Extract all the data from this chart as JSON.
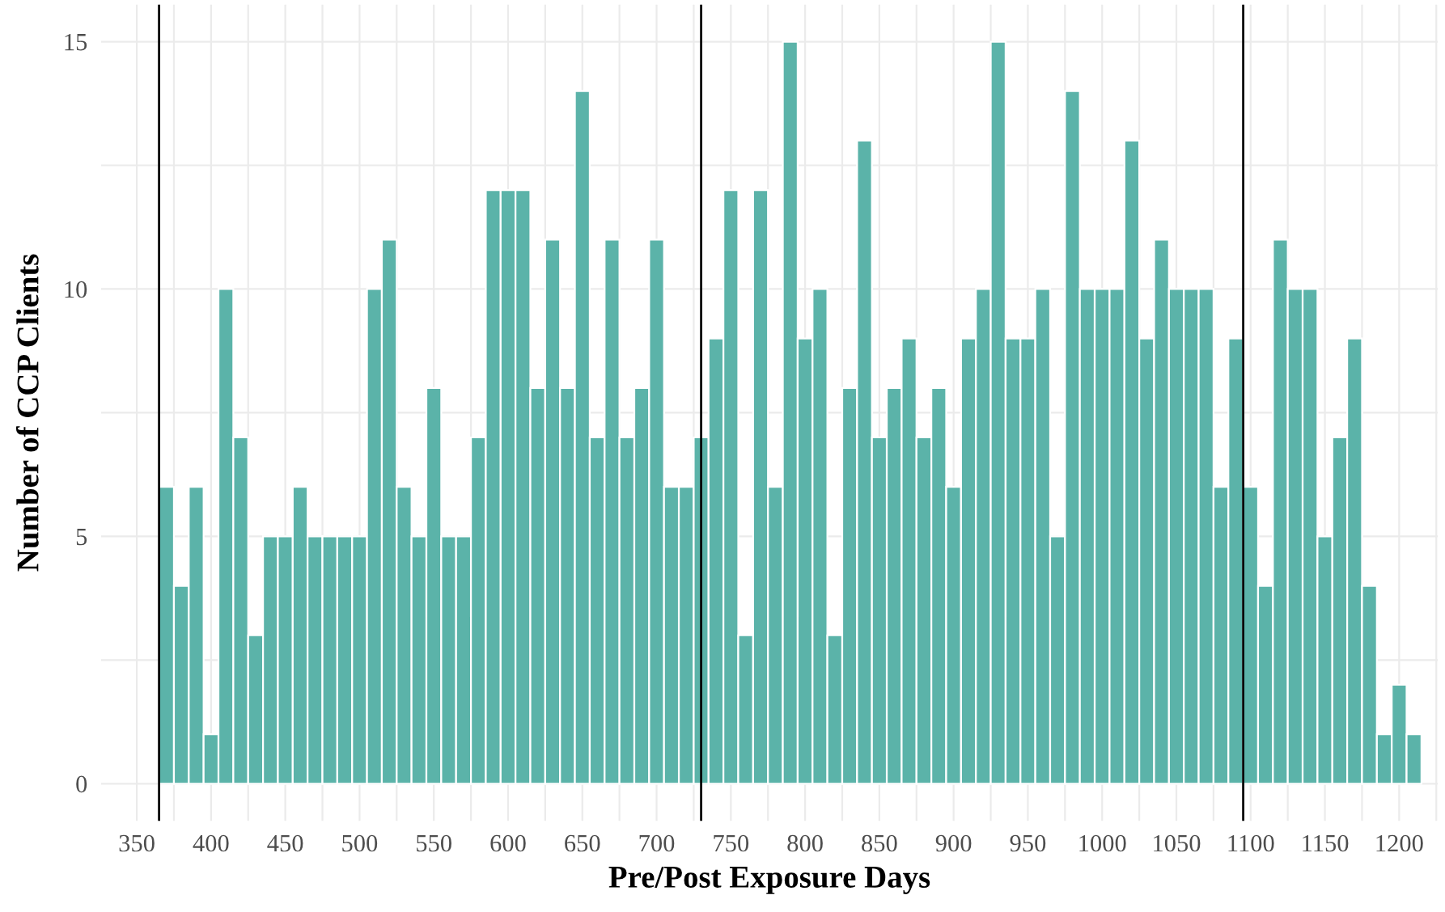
{
  "chart_data": {
    "type": "histogram",
    "xlabel": "Pre/Post Exposure Days",
    "ylabel": "Number of CCP Clients",
    "bins": [
      365,
      375,
      385,
      395,
      405,
      415,
      425,
      435,
      445,
      455,
      465,
      475,
      485,
      495,
      505,
      515,
      525,
      535,
      545,
      555,
      565,
      575,
      585,
      595,
      605,
      615,
      625,
      635,
      645,
      655,
      665,
      675,
      685,
      695,
      705,
      715,
      725,
      735,
      745,
      755,
      765,
      775,
      785,
      795,
      805,
      815,
      825,
      835,
      845,
      855,
      865,
      875,
      885,
      895,
      905,
      915,
      925,
      935,
      945,
      955,
      965,
      975,
      985,
      995,
      1005,
      1015,
      1025,
      1035,
      1045,
      1055,
      1065,
      1075,
      1085,
      1095,
      1105,
      1115,
      1125,
      1135,
      1145,
      1155,
      1165,
      1175,
      1185,
      1195,
      1205,
      1215
    ],
    "values": [
      6,
      4,
      6,
      1,
      10,
      7,
      3,
      5,
      5,
      6,
      5,
      5,
      5,
      5,
      10,
      11,
      6,
      5,
      8,
      5,
      5,
      7,
      12,
      12,
      12,
      8,
      11,
      8,
      14,
      7,
      11,
      7,
      8,
      11,
      6,
      6,
      7,
      9,
      12,
      3,
      12,
      6,
      15,
      9,
      10,
      3,
      8,
      13,
      7,
      8,
      9,
      7,
      8,
      6,
      9,
      10,
      15,
      9,
      9,
      10,
      5,
      14,
      10,
      10,
      10,
      13,
      9,
      11,
      10,
      10,
      10,
      6,
      9,
      6,
      4,
      11,
      10,
      10,
      5,
      7,
      9,
      4,
      1,
      2,
      1
    ],
    "color": "#5bb3a9",
    "xlim": [
      326,
      1226
    ],
    "ylim": [
      -0.75,
      15.75
    ],
    "xticks": [
      350,
      {
        "value": 375,
        "label": null
      },
      400,
      {
        "value": 425,
        "label": null
      },
      450,
      {
        "value": 475,
        "label": null
      },
      500,
      {
        "value": 525,
        "label": null
      },
      550,
      {
        "value": 575,
        "label": null
      },
      600,
      {
        "value": 625,
        "label": null
      },
      650,
      {
        "value": 675,
        "label": null
      },
      700,
      {
        "value": 725,
        "label": null
      },
      750,
      {
        "value": 775,
        "label": null
      },
      800,
      {
        "value": 825,
        "label": null
      },
      850,
      {
        "value": 875,
        "label": null
      },
      900,
      {
        "value": 925,
        "label": null
      },
      950,
      {
        "value": 975,
        "label": null
      },
      1000,
      {
        "value": 1025,
        "label": null
      },
      1050,
      {
        "value": 1075,
        "label": null
      },
      1100,
      {
        "value": 1125,
        "label": null
      },
      1150,
      {
        "value": 1175,
        "label": null
      },
      1200,
      {
        "value": 1225,
        "label": null
      }
    ],
    "yticks": [
      0,
      {
        "value": 2.5,
        "label": null
      },
      5,
      {
        "value": 7.5,
        "label": null
      },
      10,
      {
        "value": 12.5,
        "label": null
      },
      15
    ],
    "grid": true,
    "ref_lines": [
      {
        "axis": "x",
        "value": 365,
        "color": "#000000"
      },
      {
        "axis": "x",
        "value": 730,
        "color": "#000000"
      },
      {
        "axis": "x",
        "value": 1095,
        "color": "#000000"
      }
    ]
  }
}
